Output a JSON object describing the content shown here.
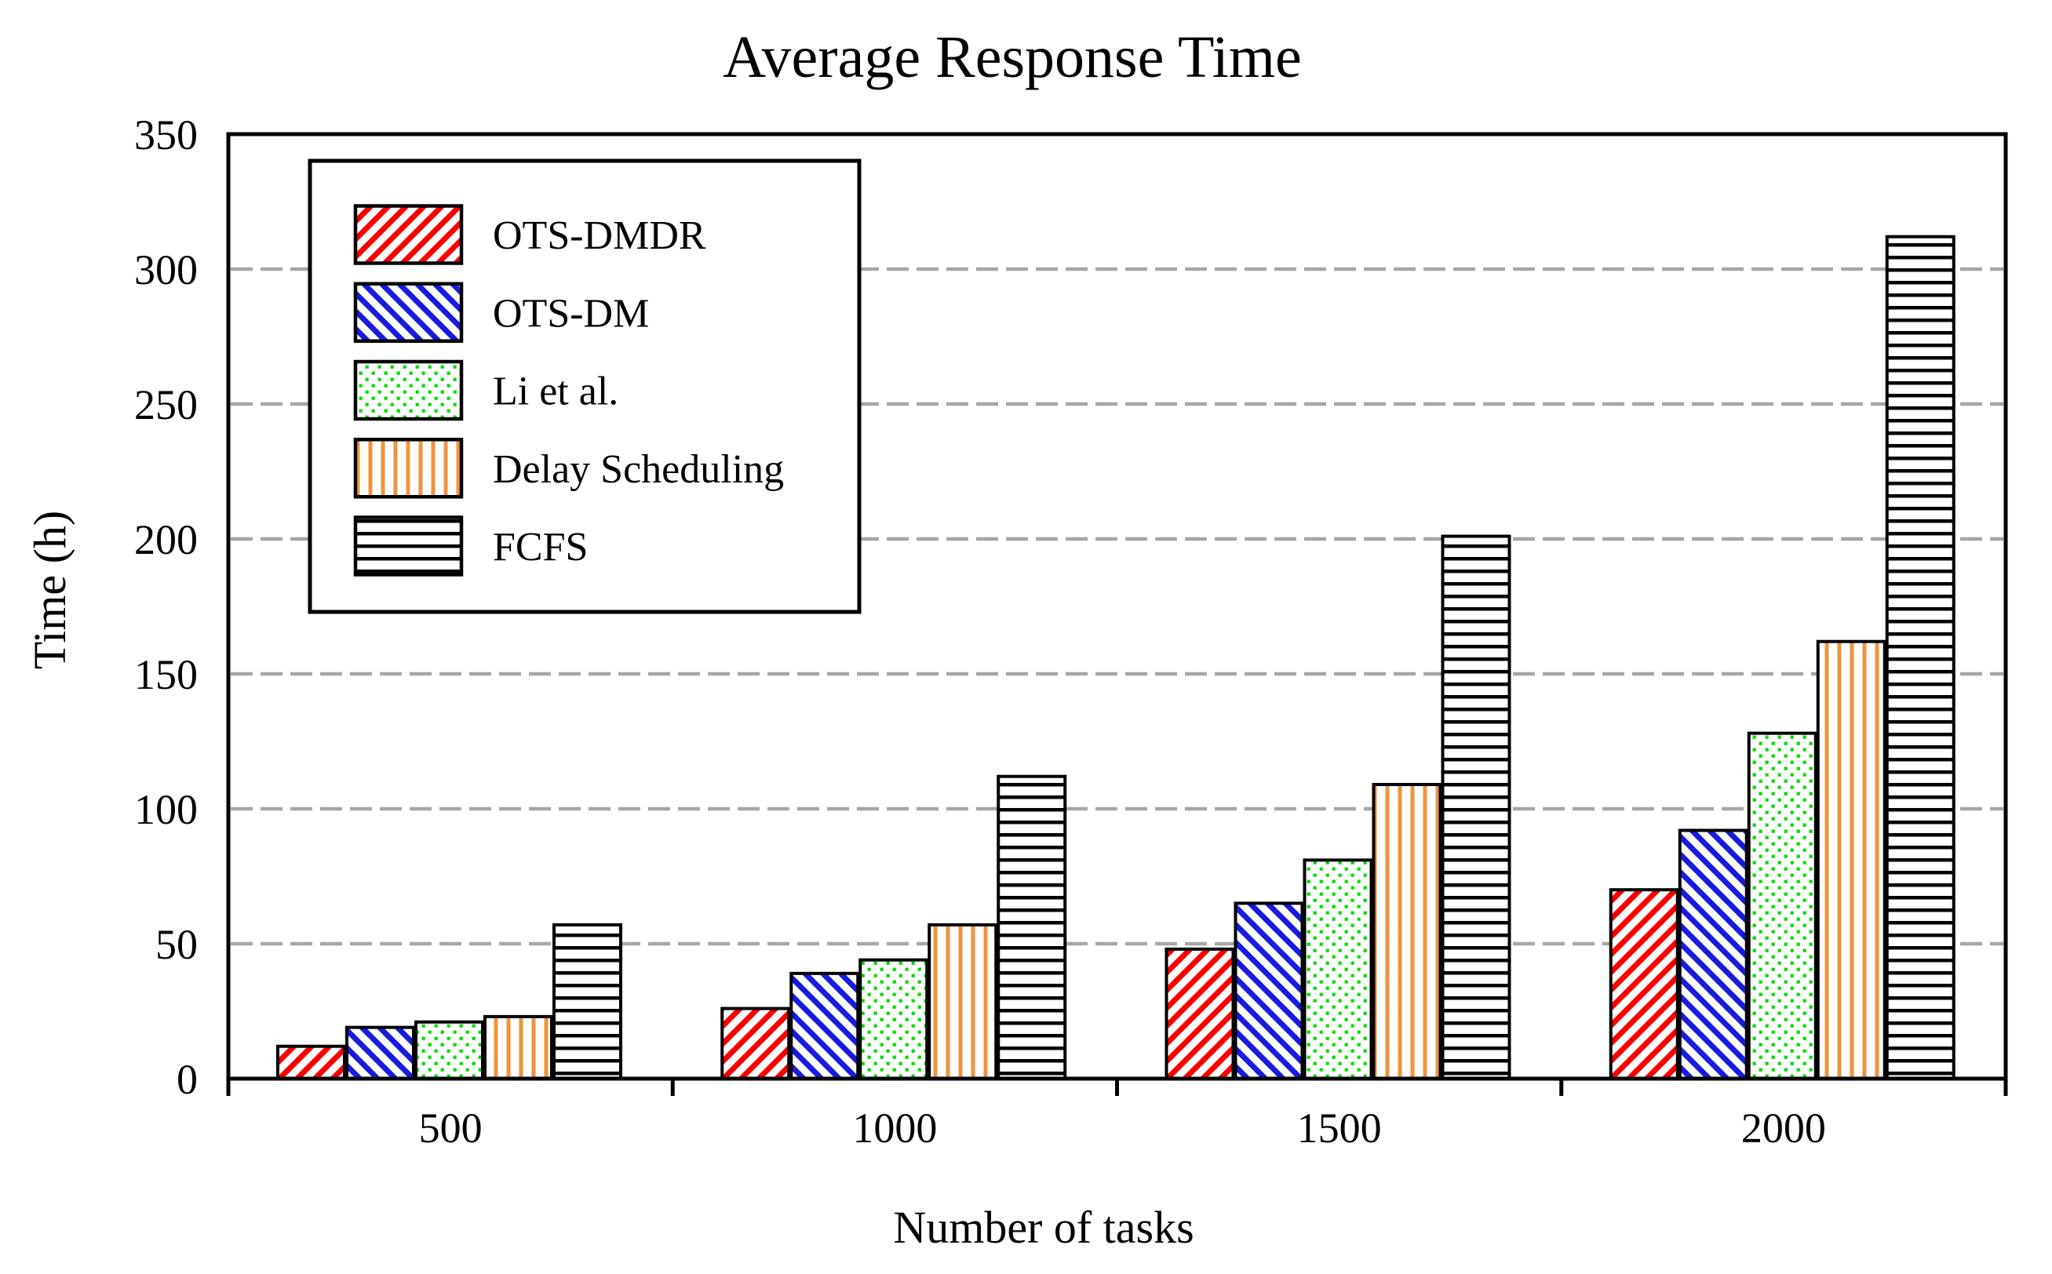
{
  "chart_data": {
    "type": "bar",
    "title": "Average Response Time",
    "xlabel": "Number of tasks",
    "ylabel": "Time (h)",
    "categories": [
      "500",
      "1000",
      "1500",
      "2000"
    ],
    "series": [
      {
        "name": "OTS-DMDR",
        "pattern": "diagonal-up",
        "color": "#FA0000",
        "values": [
          12,
          26,
          48,
          70
        ]
      },
      {
        "name": "OTS-DM",
        "pattern": "diagonal-down",
        "color": "#1A1AE0",
        "values": [
          19,
          39,
          65,
          92
        ]
      },
      {
        "name": "Li et al.",
        "pattern": "dots",
        "color": "#00DC00",
        "values": [
          21,
          44,
          81,
          128
        ]
      },
      {
        "name": "Delay Scheduling",
        "pattern": "vertical-stripes",
        "color": "#F0933C",
        "values": [
          23,
          57,
          109,
          162
        ]
      },
      {
        "name": "FCFS",
        "pattern": "horizontal-stripes",
        "color": "#000000",
        "values": [
          57,
          112,
          201,
          312
        ]
      }
    ],
    "ylim": [
      0,
      350
    ],
    "yticks": [
      0,
      50,
      100,
      150,
      200,
      250,
      300,
      350
    ],
    "grid": {
      "style": "dashed",
      "color": "#A6A6A6",
      "interval": 50
    },
    "legend_position": "upper-left",
    "bar_fill_background": "#FFFFFF",
    "axis_color": "#000000"
  }
}
